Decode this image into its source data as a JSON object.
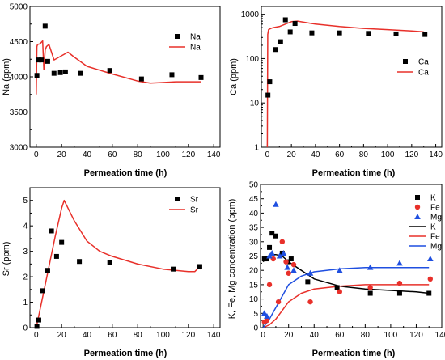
{
  "chart_data": [
    {
      "type": "line",
      "id": "na",
      "xlabel": "Permeation time (h)",
      "ylabel": "Na (ppm)",
      "xlim": [
        -5,
        145
      ],
      "ylim": [
        3000,
        5000
      ],
      "xticks": [
        0,
        20,
        40,
        60,
        80,
        100,
        120,
        140
      ],
      "yticks": [
        3000,
        3500,
        4000,
        4500,
        5000
      ],
      "scale": "linear",
      "legend_position": "top-right",
      "series": [
        {
          "name": "Na",
          "kind": "scatter",
          "marker": "square",
          "color": "#000000",
          "x": [
            0.5,
            2,
            4,
            7,
            9,
            14,
            19,
            23,
            35,
            58,
            83,
            107,
            130
          ],
          "y": [
            4020,
            4240,
            4240,
            4720,
            4220,
            4050,
            4060,
            4070,
            4050,
            4090,
            3970,
            4030,
            3990
          ]
        },
        {
          "name": "Na",
          "kind": "line",
          "color": "#e8302a",
          "x": [
            0,
            0.5,
            1,
            3,
            5,
            6,
            7,
            8,
            10,
            14,
            18,
            25,
            30,
            40,
            60,
            80,
            90,
            100,
            110,
            120,
            130
          ],
          "y": [
            3750,
            4430,
            4460,
            4470,
            4510,
            4100,
            4380,
            4430,
            4460,
            4240,
            4280,
            4350,
            4280,
            4150,
            4040,
            3940,
            3910,
            3920,
            3930,
            3930,
            3930
          ]
        }
      ]
    },
    {
      "type": "line",
      "id": "ca",
      "xlabel": "Permeation time (h)",
      "ylabel": "Ca (ppm)",
      "xlim": [
        -5,
        145
      ],
      "ylim": [
        1,
        1500
      ],
      "xticks": [
        0,
        20,
        40,
        60,
        80,
        100,
        120,
        140
      ],
      "yticks": [
        1,
        10,
        100,
        1000
      ],
      "scale": "log",
      "legend_position": "bottom-right",
      "series": [
        {
          "name": "Ca",
          "kind": "scatter",
          "marker": "square",
          "color": "#000000",
          "x": [
            0.5,
            2,
            7,
            11,
            15,
            19,
            23,
            37,
            60,
            84,
            107,
            131
          ],
          "y": [
            15,
            30,
            160,
            240,
            750,
            400,
            620,
            380,
            380,
            370,
            360,
            350
          ]
        },
        {
          "name": "Ca",
          "kind": "line",
          "color": "#e8302a",
          "x": [
            0,
            0.3,
            1,
            3,
            5,
            10,
            15,
            20,
            25,
            40,
            60,
            80,
            100,
            120,
            130
          ],
          "y": [
            1,
            350,
            450,
            480,
            500,
            530,
            600,
            680,
            700,
            600,
            530,
            480,
            450,
            420,
            400
          ]
        }
      ]
    },
    {
      "type": "line",
      "id": "sr",
      "xlabel": "Permeation time (h)",
      "ylabel": "Sr (ppm)",
      "xlim": [
        -5,
        145
      ],
      "ylim": [
        0,
        5.5
      ],
      "xticks": [
        0,
        20,
        40,
        60,
        80,
        100,
        120,
        140
      ],
      "yticks": [
        0,
        1,
        2,
        3,
        4,
        5
      ],
      "scale": "linear",
      "legend_position": "top-right",
      "series": [
        {
          "name": "Sr",
          "kind": "scatter",
          "marker": "square",
          "color": "#000000",
          "x": [
            0.5,
            2,
            5,
            9,
            12,
            16,
            20,
            34,
            58,
            108,
            129
          ],
          "y": [
            0.05,
            0.3,
            1.45,
            2.25,
            3.8,
            2.8,
            3.35,
            2.6,
            2.55,
            2.3,
            2.4
          ]
        },
        {
          "name": "Sr",
          "kind": "line",
          "color": "#e8302a",
          "x": [
            0,
            5,
            10,
            15,
            20,
            22,
            25,
            30,
            40,
            50,
            60,
            80,
            100,
            110,
            120,
            125,
            128,
            130
          ],
          "y": [
            0,
            1.2,
            2.4,
            3.6,
            4.7,
            5.0,
            4.7,
            4.2,
            3.4,
            3.0,
            2.8,
            2.5,
            2.3,
            2.25,
            2.2,
            2.2,
            2.35,
            2.3
          ]
        }
      ]
    },
    {
      "type": "line",
      "id": "kfemg",
      "xlabel": "Permeation time (h)",
      "ylabel": "K, Fe, Mg concentration (ppm)",
      "xlim": [
        -2,
        140
      ],
      "ylim": [
        0,
        50
      ],
      "xticks": [
        0,
        20,
        40,
        60,
        80,
        100,
        120,
        140
      ],
      "yticks": [
        0,
        5,
        10,
        15,
        20,
        25,
        30,
        35,
        40,
        45,
        50
      ],
      "scale": "linear",
      "legend_position": "top-right",
      "series": [
        {
          "name": "K",
          "kind": "scatter",
          "marker": "square",
          "color": "#000000",
          "x": [
            1,
            3,
            5,
            7,
            10,
            15,
            19,
            22,
            35,
            58,
            84,
            107,
            130
          ],
          "y": [
            24,
            24,
            28,
            33,
            32,
            26,
            23,
            24,
            16,
            14,
            12,
            12,
            12
          ]
        },
        {
          "name": "Fe",
          "kind": "scatter",
          "marker": "circle",
          "color": "#e8302a",
          "x": [
            1,
            3,
            5,
            8,
            12,
            15,
            18,
            20,
            24,
            37,
            60,
            84,
            107,
            131
          ],
          "y": [
            2,
            2.5,
            15,
            24,
            9,
            30,
            23,
            19,
            22,
            9,
            12.5,
            14,
            15.5,
            17
          ]
        },
        {
          "name": "Mg",
          "kind": "scatter",
          "marker": "triangle",
          "color": "#1f4fe0",
          "x": [
            1,
            3,
            5,
            7,
            10,
            13,
            16,
            19,
            24,
            37,
            60,
            84,
            107,
            131
          ],
          "y": [
            5,
            4,
            25,
            26,
            43,
            25,
            26,
            21,
            20,
            19,
            20,
            21,
            22.5,
            24
          ]
        },
        {
          "name": "K",
          "kind": "line",
          "color": "#000000",
          "x": [
            0,
            2,
            5,
            8,
            10,
            15,
            20,
            30,
            40,
            60,
            80,
            100,
            120,
            130
          ],
          "y": [
            23,
            24,
            25,
            25.5,
            25.5,
            25,
            23,
            20,
            17,
            14.5,
            13.5,
            13,
            12.5,
            12
          ]
        },
        {
          "name": "Fe",
          "kind": "line",
          "color": "#e8302a",
          "x": [
            0,
            5,
            10,
            15,
            20,
            30,
            40,
            60,
            80,
            100,
            120,
            130
          ],
          "y": [
            0,
            1,
            3,
            6,
            9,
            12,
            13.5,
            14.5,
            15,
            15,
            15,
            15
          ]
        },
        {
          "name": "Mg",
          "kind": "line",
          "color": "#1f4fe0",
          "x": [
            0,
            5,
            10,
            15,
            20,
            30,
            40,
            60,
            80,
            100,
            120,
            130
          ],
          "y": [
            0,
            3,
            7,
            11,
            15,
            18,
            19.5,
            20.5,
            21,
            21,
            21,
            21
          ]
        }
      ]
    }
  ]
}
